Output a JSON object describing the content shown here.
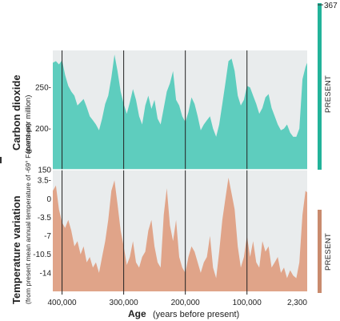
{
  "chart_data": [
    {
      "type": "area",
      "ylabel": "Carbon dioxide",
      "ylabel_sub": "(parts per million)",
      "yticks": [
        "250-",
        "200-",
        "150"
      ],
      "ytick_values": [
        250,
        200,
        150
      ],
      "ylim": [
        150,
        295
      ],
      "xlim": [
        415000,
        2300
      ],
      "present_label": "PRESENT",
      "present_value": "367",
      "color": "#5ecdbe",
      "bar_color": "#22b39a",
      "series": [
        {
          "x": [
            415000,
            410000,
            405000,
            400000,
            395000,
            390000,
            385000,
            380000,
            375000,
            370000,
            365000,
            360000,
            355000,
            350000,
            345000,
            340000,
            335000,
            330000,
            325000,
            320000,
            315000,
            310000,
            305000,
            300000,
            295000,
            290000,
            285000,
            280000,
            275000,
            270000,
            265000,
            260000,
            255000,
            250000,
            245000,
            240000,
            235000,
            230000,
            225000,
            220000,
            215000,
            210000,
            205000,
            200000,
            195000,
            190000,
            185000,
            180000,
            175000,
            170000,
            165000,
            160000,
            155000,
            150000,
            145000,
            140000,
            135000,
            130000,
            125000,
            120000,
            115000,
            110000,
            105000,
            100000,
            95000,
            90000,
            85000,
            80000,
            75000,
            70000,
            65000,
            60000,
            55000,
            50000,
            45000,
            40000,
            35000,
            30000,
            25000,
            20000,
            15000,
            10000,
            5000,
            2300
          ],
          "values": [
            280,
            282,
            278,
            283,
            265,
            252,
            245,
            240,
            228,
            232,
            236,
            226,
            215,
            210,
            205,
            198,
            212,
            230,
            240,
            262,
            290,
            270,
            245,
            230,
            218,
            232,
            248,
            235,
            215,
            205,
            228,
            240,
            224,
            235,
            212,
            205,
            225,
            245,
            255,
            270,
            235,
            228,
            215,
            208,
            220,
            238,
            230,
            215,
            198,
            205,
            210,
            215,
            200,
            190,
            205,
            230,
            255,
            282,
            285,
            270,
            240,
            228,
            235,
            252,
            250,
            240,
            230,
            218,
            225,
            238,
            242,
            225,
            215,
            205,
            198,
            200,
            205,
            195,
            190,
            190,
            200,
            260,
            275,
            280
          ]
        }
      ]
    },
    {
      "type": "area",
      "ylabel": "Temperature variation",
      "ylabel_sub": "(from present mean annual temperature of -69° Fahrenheit)",
      "yticks": [
        "3.5-",
        "0",
        "-3.5",
        "-7",
        "-10.5",
        "-14"
      ],
      "ytick_values": [
        3.5,
        0,
        -3.5,
        -7,
        -10.5,
        -14
      ],
      "ylim": [
        -17.5,
        5.5
      ],
      "xlim": [
        415000,
        2300
      ],
      "present_label": "PRESENT",
      "color": "#e0a489",
      "bar_color": "#c98b6e",
      "xlabel": "Age",
      "xlabel_sub": "(years before present)",
      "xticks": [
        "400,000",
        "300,000",
        "200,000",
        "100,000",
        "2,300"
      ],
      "xtick_values": [
        400000,
        300000,
        200000,
        100000,
        2300
      ],
      "series": [
        {
          "x": [
            415000,
            410000,
            405000,
            400000,
            395000,
            390000,
            385000,
            380000,
            375000,
            370000,
            365000,
            360000,
            355000,
            350000,
            345000,
            340000,
            335000,
            330000,
            325000,
            320000,
            315000,
            310000,
            305000,
            300000,
            295000,
            290000,
            285000,
            280000,
            275000,
            270000,
            265000,
            260000,
            255000,
            250000,
            245000,
            240000,
            235000,
            230000,
            225000,
            220000,
            215000,
            210000,
            205000,
            200000,
            195000,
            190000,
            185000,
            180000,
            175000,
            170000,
            165000,
            160000,
            155000,
            150000,
            145000,
            140000,
            135000,
            130000,
            125000,
            120000,
            115000,
            110000,
            105000,
            100000,
            95000,
            90000,
            85000,
            80000,
            75000,
            70000,
            65000,
            60000,
            55000,
            50000,
            45000,
            40000,
            35000,
            30000,
            25000,
            20000,
            15000,
            10000,
            5000,
            2300
          ],
          "values": [
            1.5,
            2.5,
            -2,
            -4.5,
            -5.5,
            -4,
            -6,
            -9,
            -8,
            -10.5,
            -9,
            -12,
            -11,
            -13,
            -12,
            -14,
            -11,
            -8,
            -4,
            1.5,
            3.5,
            -1,
            -6,
            -9,
            -12.5,
            -11,
            -8,
            -12,
            -13,
            -11,
            -10,
            -6,
            -4,
            -9,
            -12,
            -13,
            -3,
            2,
            -5,
            -8,
            -4,
            -11,
            -13,
            -14,
            -11,
            -9,
            -10,
            -12,
            -14,
            -12,
            -11,
            -7,
            -13,
            -15,
            -10,
            -4,
            0,
            4,
            1,
            -2,
            -9,
            -13,
            -11,
            -7,
            -11,
            -8,
            -12,
            -13,
            -8,
            -10,
            -9,
            -13,
            -12,
            -11,
            -14,
            -13,
            -15,
            -13.5,
            -14.5,
            -15,
            -12,
            -3,
            1.5,
            1.2
          ]
        }
      ]
    }
  ]
}
